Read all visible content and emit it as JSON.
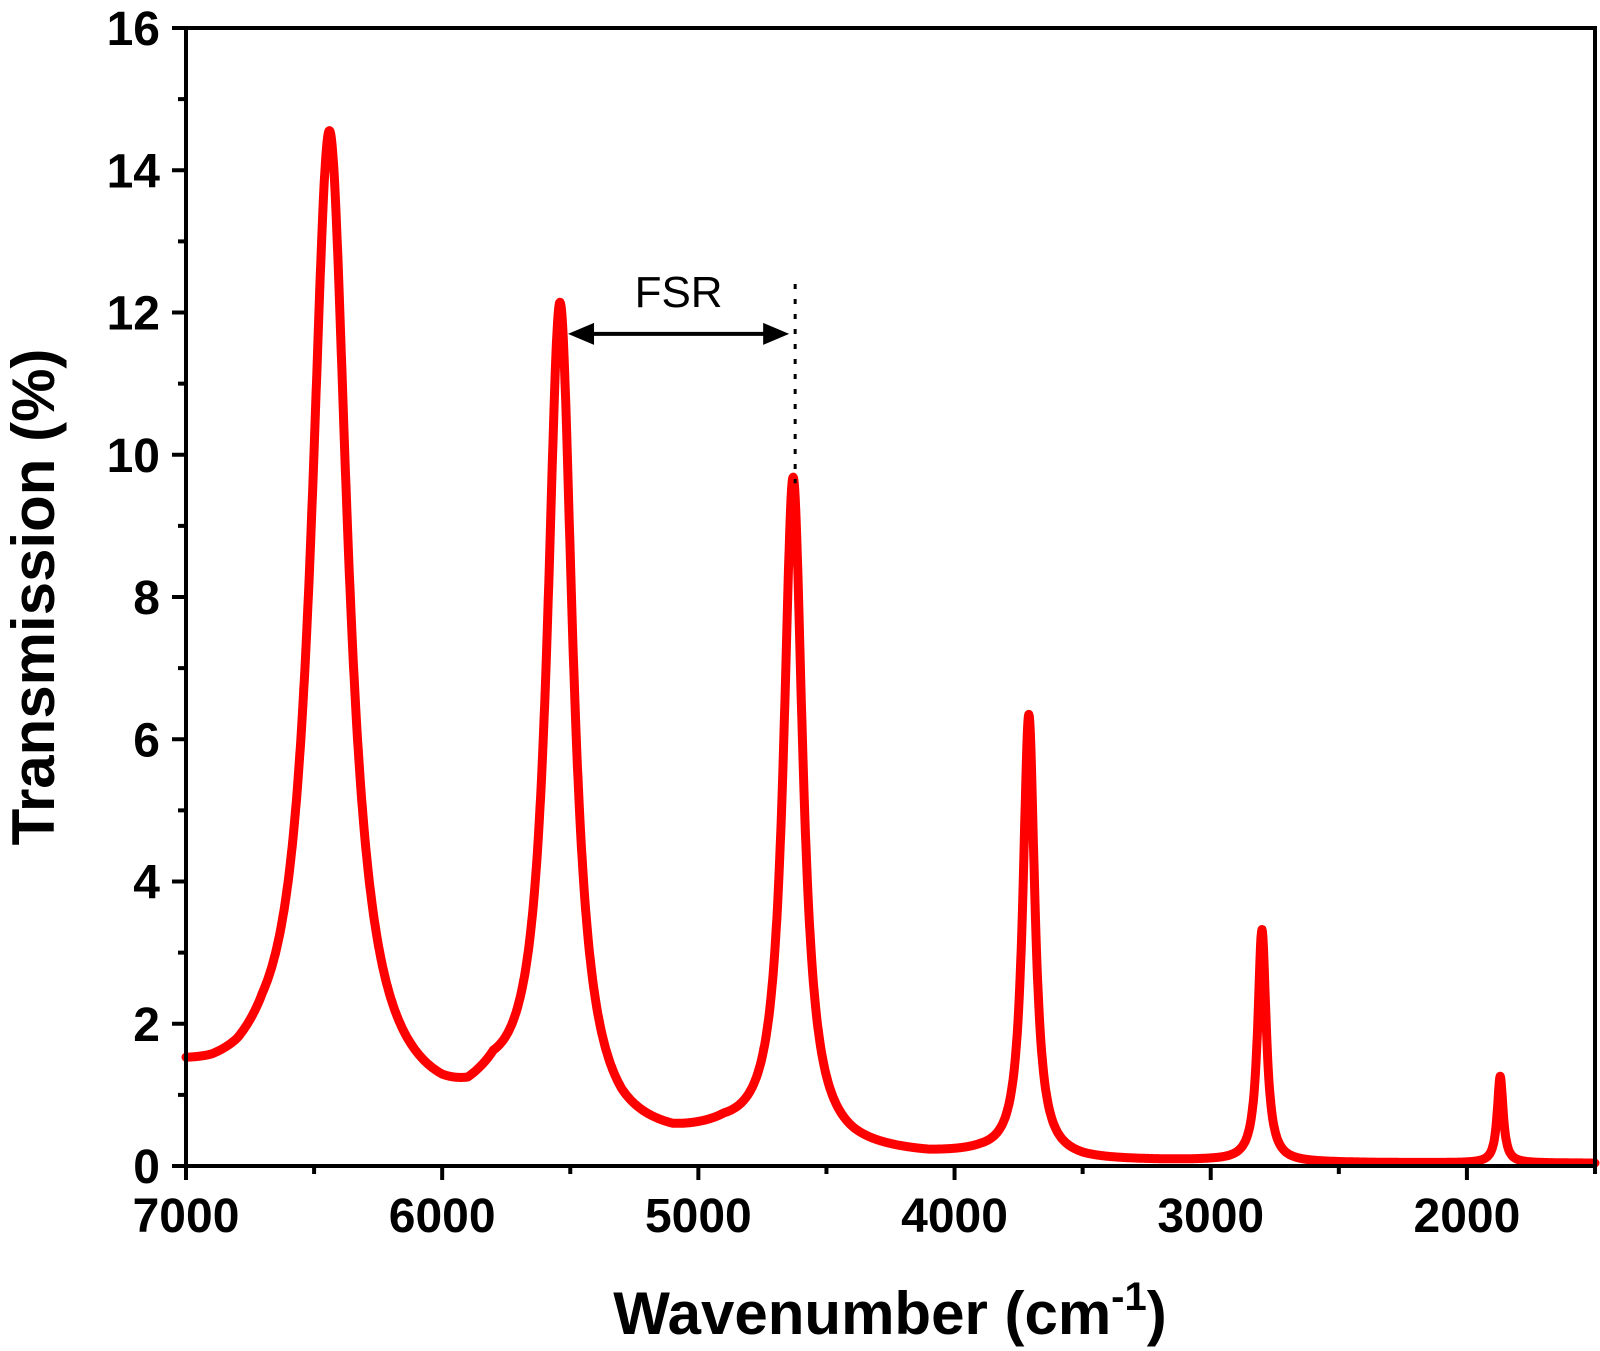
{
  "chart_data": {
    "type": "line",
    "title": "",
    "xlabel_main": "Wavenumber (cm",
    "xlabel_sup": "-1",
    "xlabel_tail": ")",
    "ylabel": "Transmission (%)",
    "xlim": [
      7000,
      1500
    ],
    "ylim": [
      0,
      16
    ],
    "x_ticks": [
      7000,
      6000,
      5000,
      4000,
      3000,
      2000
    ],
    "x_tick_labels": [
      "7000",
      "6000",
      "5000",
      "4000",
      "3000",
      "2000"
    ],
    "y_ticks": [
      0,
      2,
      4,
      6,
      8,
      10,
      12,
      14,
      16
    ],
    "y_tick_labels": [
      "0",
      "2",
      "4",
      "6",
      "8",
      "10",
      "12",
      "14",
      "16"
    ],
    "series_color": "#ff0000",
    "baseline": [
      [
        7000,
        1.2
      ],
      [
        6900,
        1.1
      ],
      [
        6800,
        1.05
      ],
      [
        6700,
        1.1
      ],
      [
        6600,
        1.0
      ],
      [
        6000,
        0.6
      ],
      [
        5900,
        0.6
      ],
      [
        5800,
        0.8
      ],
      [
        5300,
        0.3
      ],
      [
        5100,
        0.25
      ],
      [
        4900,
        0.35
      ],
      [
        4400,
        0.15
      ],
      [
        4100,
        0.1
      ],
      [
        3900,
        0.12
      ],
      [
        3500,
        0.05
      ],
      [
        3000,
        0.05
      ],
      [
        2700,
        0.03
      ],
      [
        2000,
        0.03
      ],
      [
        1500,
        0.03
      ]
    ],
    "peaks": [
      {
        "center": 6440,
        "height": 14.5,
        "width": 85
      },
      {
        "center": 5540,
        "height": 12.0,
        "width": 60
      },
      {
        "center": 4630,
        "height": 9.6,
        "width": 45
      },
      {
        "center": 3710,
        "height": 6.3,
        "width": 28
      },
      {
        "center": 2800,
        "height": 3.3,
        "width": 20
      },
      {
        "center": 1870,
        "height": 1.25,
        "width": 14
      }
    ],
    "annotation": {
      "label": "FSR",
      "from_x": 5540,
      "to_x": 4630,
      "arrow_y": 11.7,
      "dotted_from_y": 9.6,
      "dotted_to_y": 12.4
    }
  }
}
